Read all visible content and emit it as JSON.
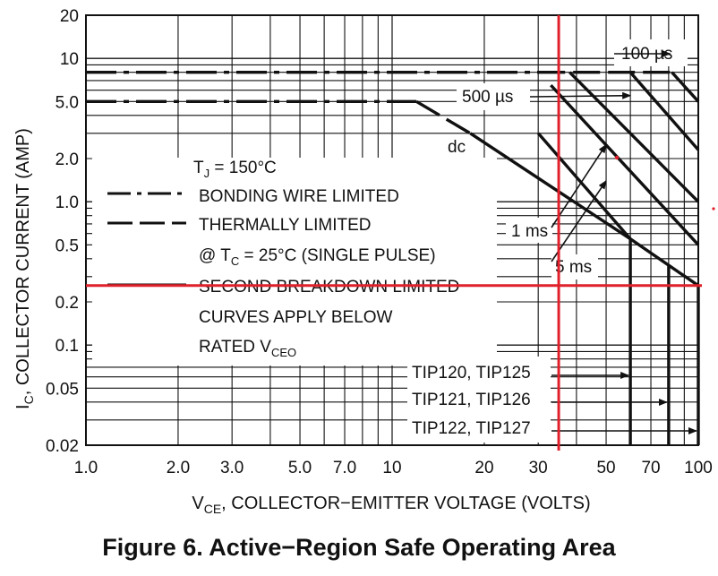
{
  "caption": "Figure 6. Active−Region Safe Operating Area",
  "chart_data": {
    "type": "line",
    "title": "",
    "xlabel_main": "V",
    "xlabel_sub": "CE",
    "xlabel_rest": ", COLLECTOR−EMITTER VOLTAGE (VOLTS)",
    "ylabel_main": "I",
    "ylabel_sub": "C",
    "ylabel_rest": ", COLLECTOR CURRENT (AMP)",
    "x_scale": "log",
    "y_scale": "log",
    "xlim": [
      1,
      100
    ],
    "ylim": [
      0.02,
      20
    ],
    "grid": true,
    "x_ticks": [
      {
        "v": 1,
        "label": "1.0"
      },
      {
        "v": 2,
        "label": "2.0"
      },
      {
        "v": 3,
        "label": "3.0"
      },
      {
        "v": 5,
        "label": "5.0"
      },
      {
        "v": 7,
        "label": "7.0"
      },
      {
        "v": 10,
        "label": "10"
      },
      {
        "v": 20,
        "label": "20"
      },
      {
        "v": 30,
        "label": "30"
      },
      {
        "v": 50,
        "label": "50"
      },
      {
        "v": 70,
        "label": "70"
      },
      {
        "v": 100,
        "label": "100"
      }
    ],
    "y_ticks": [
      {
        "v": 20,
        "label": "20"
      },
      {
        "v": 10,
        "label": "10"
      },
      {
        "v": 5,
        "label": "5.0"
      },
      {
        "v": 2,
        "label": "2.0"
      },
      {
        "v": 1,
        "label": "1.0"
      },
      {
        "v": 0.5,
        "label": "0.5"
      },
      {
        "v": 0.2,
        "label": "0.2"
      },
      {
        "v": 0.1,
        "label": "0.1"
      },
      {
        "v": 0.05,
        "label": "0.05"
      },
      {
        "v": 0.02,
        "label": "0.02"
      }
    ],
    "legend": {
      "tj_main": "T",
      "tj_sub": "J",
      "tj_rest": " = 150°C",
      "bonding": "BONDING WIRE LIMITED",
      "thermal": "THERMALLY LIMITED",
      "tc_pre": "@ T",
      "tc_sub": "C",
      "tc_rest": " = 25°C (SINGLE PULSE)",
      "second": "SECOND BREAKDOWN LIMITED",
      "curves1": "CURVES APPLY BELOW",
      "curves2_main": "RATED V",
      "curves2_sub": "CEO"
    },
    "series": [
      {
        "name": "BONDING WIRE LIMITED",
        "style": "dashdot",
        "points": [
          [
            1,
            8
          ],
          [
            30,
            8
          ]
        ]
      },
      {
        "name": "BONDING WIRE LIMITED",
        "style": "dashdot",
        "points": [
          [
            1,
            5
          ],
          [
            12,
            5
          ]
        ]
      },
      {
        "name": "THERMALLY LIMITED",
        "style": "dash",
        "points": [
          [
            30,
            8
          ],
          [
            82,
            8
          ]
        ]
      },
      {
        "name": "THERMALLY LIMITED",
        "style": "dash",
        "points": [
          [
            12,
            5
          ],
          [
            18,
            3
          ]
        ]
      },
      {
        "name": "SECOND BREAKDOWN LIMITED",
        "style": "solid",
        "points": [
          [
            18,
            3
          ],
          [
            60,
            0.55
          ],
          [
            100,
            0.26
          ]
        ]
      },
      {
        "name": "SECOND BREAKDOWN LIMITED",
        "style": "solid",
        "points": [
          [
            60,
            0.55
          ],
          [
            60,
            0.02
          ]
        ]
      },
      {
        "name": "SECOND BREAKDOWN LIMITED",
        "style": "solid",
        "points": [
          [
            80,
            0.36
          ],
          [
            80,
            0.02
          ]
        ]
      },
      {
        "name": "SECOND BREAKDOWN LIMITED",
        "style": "solid",
        "points": [
          [
            100,
            0.26
          ],
          [
            100,
            0.02
          ]
        ]
      },
      {
        "name": "100 µs",
        "style": "solid",
        "points": [
          [
            82,
            8
          ],
          [
            100,
            5
          ]
        ]
      },
      {
        "name": "500 µs",
        "style": "solid",
        "points": [
          [
            60,
            8
          ],
          [
            100,
            2.3
          ]
        ]
      },
      {
        "name": "1 ms",
        "style": "solid",
        "points": [
          [
            38,
            8
          ],
          [
            100,
            1.0
          ]
        ]
      },
      {
        "name": "5 ms",
        "style": "solid",
        "points": [
          [
            33,
            6.5
          ],
          [
            100,
            0.5
          ]
        ]
      },
      {
        "name": "dc",
        "style": "solid",
        "points": [
          [
            30,
            3.0
          ],
          [
            60,
            0.55
          ]
        ]
      }
    ],
    "annotations": [
      {
        "text": "100 µs",
        "arrow_to": [
          82,
          8
        ]
      },
      {
        "text": "500 µs",
        "arrow_to": [
          60,
          5.5
        ]
      },
      {
        "text": "dc"
      },
      {
        "text": "1 ms",
        "arrow_to": [
          50,
          2.5
        ]
      },
      {
        "text": "5 ms",
        "arrow_to": [
          50,
          1.4
        ]
      },
      {
        "text": "TIP120, TIP125",
        "arrow_to": [
          60,
          0.05
        ]
      },
      {
        "text": "TIP121, TIP126",
        "arrow_to": [
          80,
          0.035
        ]
      },
      {
        "text": "TIP122, TIP127",
        "arrow_to": [
          100,
          0.025
        ]
      }
    ],
    "markers": {
      "vce": 35,
      "ic": 0.26,
      "color": "#e0202a"
    },
    "colors": {
      "curve": "#111111",
      "marker": "#e0202a",
      "grid": "#111111"
    }
  }
}
